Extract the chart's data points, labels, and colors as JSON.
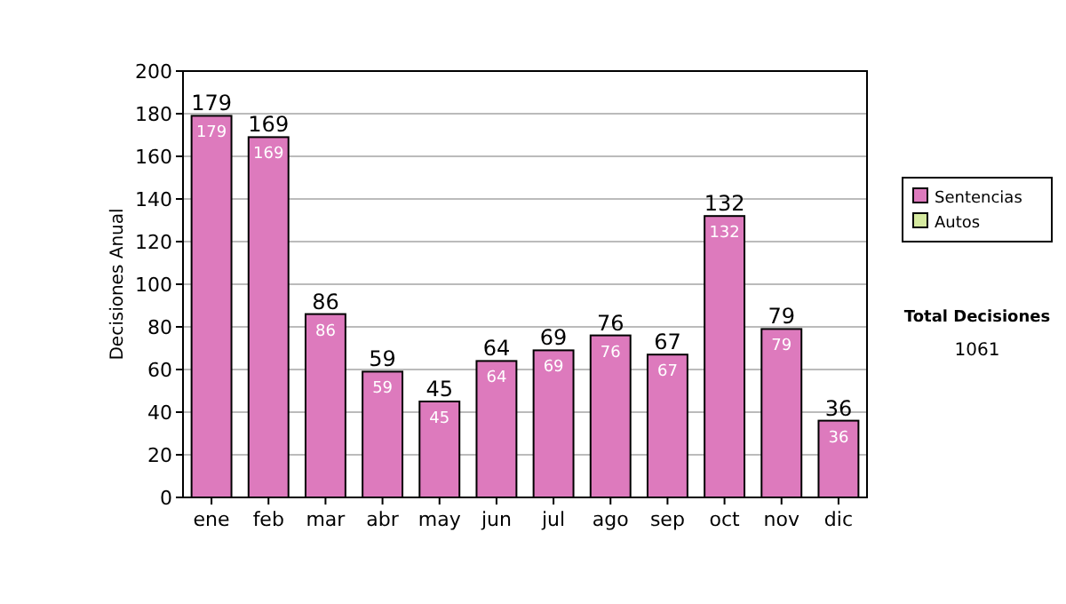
{
  "chart_data": {
    "type": "bar",
    "stacked": true,
    "ylabel": "Decisiones Anual",
    "categories": [
      "ene",
      "feb",
      "mar",
      "abr",
      "may",
      "jun",
      "jul",
      "ago",
      "sep",
      "oct",
      "nov",
      "dic"
    ],
    "series": [
      {
        "name": "Sentencias",
        "color": "#dd7abd",
        "values": [
          179,
          169,
          86,
          59,
          45,
          64,
          69,
          76,
          67,
          132,
          79,
          36
        ],
        "value_labels": [
          "179",
          "169",
          "86",
          "59",
          "45",
          "64",
          "69",
          "76",
          "67",
          "132",
          "79",
          "36"
        ]
      },
      {
        "name": "Autos",
        "color": "#d6eaa0",
        "values": [
          0,
          0,
          0,
          0,
          0,
          0,
          0,
          0,
          0,
          0,
          0,
          0
        ]
      }
    ],
    "totals": [
      "179",
      "169",
      "86",
      "59",
      "45",
      "64",
      "69",
      "76",
      "67",
      "132",
      "79",
      "36"
    ],
    "ylim": [
      0,
      200
    ],
    "yticks": [
      0,
      20,
      40,
      60,
      80,
      100,
      120,
      140,
      160,
      180,
      200
    ],
    "grid": "y",
    "legend": "right",
    "annotations": [
      "Total Decisiones",
      "1061"
    ]
  }
}
